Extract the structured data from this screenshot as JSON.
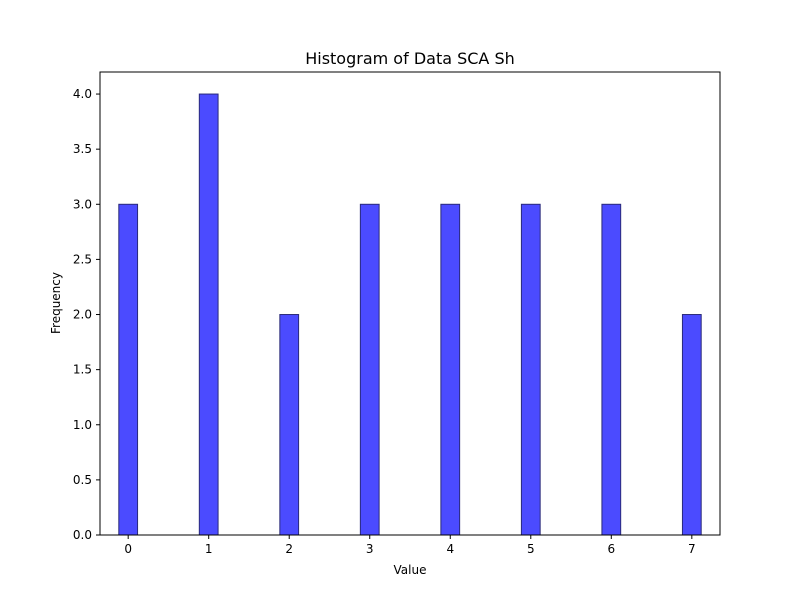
{
  "chart_data": {
    "type": "bar",
    "title": "Histogram of Data SCA Sh",
    "xlabel": "Value",
    "ylabel": "Frequency",
    "bins": [
      {
        "center": 0,
        "value": 3
      },
      {
        "center": 1,
        "value": 4
      },
      {
        "center": 2,
        "value": 2
      },
      {
        "center": 3,
        "value": 3
      },
      {
        "center": 4,
        "value": 3
      },
      {
        "center": 5,
        "value": 3
      },
      {
        "center": 6,
        "value": 3
      },
      {
        "center": 7,
        "value": 2
      }
    ],
    "bin_width": 0.233,
    "xlim": [
      -0.35,
      7.35
    ],
    "ylim": [
      0,
      4.2
    ],
    "xticks": [
      "0",
      "1",
      "2",
      "3",
      "4",
      "5",
      "6",
      "7"
    ],
    "yticks": [
      "0.0",
      "0.5",
      "1.0",
      "1.5",
      "2.0",
      "2.5",
      "3.0",
      "3.5",
      "4.0"
    ],
    "grid": false,
    "bar_color": "#4b4bff",
    "edge_color": "#2a2a7a"
  }
}
